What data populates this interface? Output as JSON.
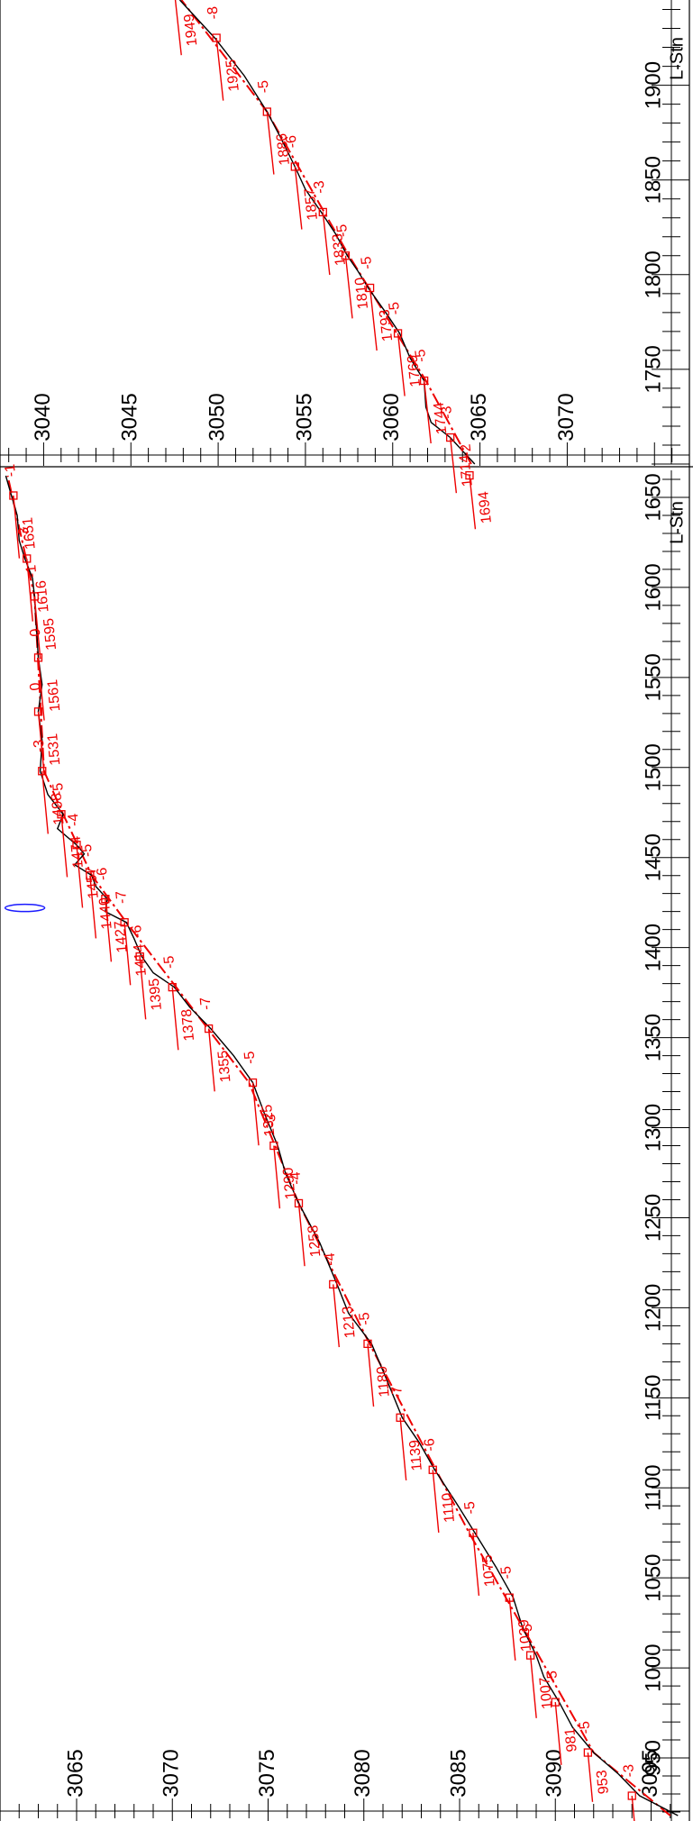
{
  "axes": {
    "l_stn_label": "L-Stn",
    "panel_a": {
      "stn_ticks": [
        "950",
        "1000",
        "1050",
        "1100",
        "1150",
        "1200",
        "1250",
        "1300",
        "1350",
        "1400",
        "1450",
        "1500",
        "1550",
        "1600",
        "1650"
      ],
      "elev_ticks": [
        "3095",
        "3090",
        "3085",
        "3080",
        "3075",
        "3070",
        "3065"
      ]
    },
    "panel_b": {
      "stn_ticks": [
        "1750",
        "1800",
        "1850",
        "1900"
      ],
      "elev_ticks": [
        "3070",
        "3065",
        "3060",
        "3055",
        "3050",
        "3045",
        "3040"
      ]
    }
  },
  "colors": {
    "annotation": "#e00000",
    "ground_profile": "#000000",
    "blunder_marker": "#1a1aff"
  },
  "chart_data": {
    "type": "line",
    "xlabel": "L-Stn",
    "ylabel": "",
    "panels": [
      {
        "xlim": [
          915,
          1665
        ],
        "ylim": [
          3061,
          3097
        ],
        "x_ticks": [
          950,
          1000,
          1050,
          1100,
          1150,
          1200,
          1250,
          1300,
          1350,
          1400,
          1450,
          1500,
          1550,
          1600,
          1650
        ],
        "y_ticks": [
          3095,
          3090,
          3085,
          3080,
          3075,
          3070,
          3065
        ],
        "stations": [
          {
            "stn": "929",
            "diff": "-3",
            "x": 929,
            "y": 3094.0,
            "len": 36,
            "show_label": false
          },
          {
            "stn": "953",
            "diff": "-5",
            "x": 953,
            "y": 3091.7,
            "len": 55
          },
          {
            "stn": "981",
            "diff": "-5",
            "x": 981,
            "y": 3090.0,
            "len": 70
          },
          {
            "stn": "1007",
            "diff": "-5",
            "x": 1007,
            "y": 3088.7,
            "len": 70
          },
          {
            "stn": "1039",
            "diff": "-5",
            "x": 1039,
            "y": 3087.6,
            "len": 70
          },
          {
            "stn": "1075",
            "diff": "-5",
            "x": 1075,
            "y": 3085.7,
            "len": 70
          },
          {
            "stn": "1110",
            "diff": "-6",
            "x": 1110,
            "y": 3083.6,
            "len": 70
          },
          {
            "stn": "1139",
            "diff": "-7",
            "x": 1139,
            "y": 3081.9,
            "len": 70
          },
          {
            "stn": "1180",
            "diff": "-5",
            "x": 1180,
            "y": 3080.2,
            "len": 70
          },
          {
            "stn": "1213",
            "diff": "-4",
            "x": 1213,
            "y": 3078.4,
            "len": 70
          },
          {
            "stn": "1258",
            "diff": "-4",
            "x": 1258,
            "y": 3076.6,
            "len": 70
          },
          {
            "stn": "1290",
            "diff": "-3",
            "x": 1290,
            "y": 3075.3,
            "len": 70
          },
          {
            "stn": "1325",
            "diff": "-5",
            "x": 1325,
            "y": 3074.2,
            "len": 70
          },
          {
            "stn": "1355",
            "diff": "-7",
            "x": 1355,
            "y": 3071.9,
            "len": 70
          },
          {
            "stn": "1378",
            "diff": "-5",
            "x": 1378,
            "y": 3070.0,
            "len": 70
          },
          {
            "stn": "1395",
            "diff": "-6",
            "x": 1395,
            "y": 3068.3,
            "len": 70
          },
          {
            "stn": "1414",
            "diff": "-7",
            "x": 1414,
            "y": 3067.5,
            "len": 70
          },
          {
            "stn": "1427",
            "diff": "-6",
            "x": 1427,
            "y": 3066.5,
            "len": 70
          },
          {
            "stn": "1440",
            "diff": "-5",
            "x": 1440,
            "y": 3065.7,
            "len": 70
          },
          {
            "stn": "1457",
            "diff": "-4",
            "x": 1457,
            "y": 3065.0,
            "len": 70
          },
          {
            "stn": "1474",
            "diff": "-5",
            "x": 1474,
            "y": 3064.2,
            "len": 70
          },
          {
            "stn": "1498",
            "diff": "-3",
            "x": 1498,
            "y": 3063.2,
            "len": 70
          },
          {
            "stn": "1531",
            "diff": "0",
            "x": 1531,
            "y": 3063.0,
            "len": 70
          },
          {
            "stn": "1561",
            "diff": "0",
            "x": 1561,
            "y": 3063.0,
            "len": 70
          },
          {
            "stn": "1595",
            "diff": "-1",
            "x": 1595,
            "y": 3062.8,
            "len": 70
          },
          {
            "stn": "1616",
            "diff": "-3",
            "x": 1616,
            "y": 3062.4,
            "len": 70
          },
          {
            "stn": "1651",
            "diff": "-1",
            "x": 1651,
            "y": 3061.7,
            "len": 70
          }
        ],
        "ground_profile": [
          [
            918,
            3096.4
          ],
          [
            929,
            3094.4
          ],
          [
            941,
            3093.3
          ],
          [
            953,
            3092.0
          ],
          [
            967,
            3090.9
          ],
          [
            981,
            3090.2
          ],
          [
            995,
            3089.4
          ],
          [
            1007,
            3089.0
          ],
          [
            1022,
            3088.3
          ],
          [
            1039,
            3087.8
          ],
          [
            1056,
            3086.9
          ],
          [
            1075,
            3085.8
          ],
          [
            1092,
            3084.8
          ],
          [
            1110,
            3083.7
          ],
          [
            1125,
            3082.9
          ],
          [
            1139,
            3082.0
          ],
          [
            1160,
            3081.2
          ],
          [
            1180,
            3080.4
          ],
          [
            1197,
            3079.2
          ],
          [
            1213,
            3078.6
          ],
          [
            1236,
            3077.7
          ],
          [
            1258,
            3076.6
          ],
          [
            1275,
            3075.9
          ],
          [
            1290,
            3075.5
          ],
          [
            1308,
            3074.8
          ],
          [
            1325,
            3074.2
          ],
          [
            1340,
            3073.2
          ],
          [
            1355,
            3072.0
          ],
          [
            1367,
            3070.9
          ],
          [
            1378,
            3070.1
          ],
          [
            1386,
            3069.0
          ],
          [
            1395,
            3068.4
          ],
          [
            1405,
            3068.0
          ],
          [
            1414,
            3067.6
          ],
          [
            1420,
            3066.5
          ],
          [
            1427,
            3066.6
          ],
          [
            1434,
            3066.0
          ],
          [
            1440,
            3065.8
          ],
          [
            1446,
            3064.9
          ],
          [
            1452,
            3065.4
          ],
          [
            1457,
            3065.0
          ],
          [
            1466,
            3064.0
          ],
          [
            1474,
            3064.3
          ],
          [
            1485,
            3063.5
          ],
          [
            1498,
            3063.1
          ],
          [
            1515,
            3063.2
          ],
          [
            1531,
            3063.0
          ],
          [
            1546,
            3063.2
          ],
          [
            1561,
            3063.0
          ],
          [
            1578,
            3062.9
          ],
          [
            1595,
            3062.8
          ],
          [
            1605,
            3062.7
          ],
          [
            1616,
            3062.3
          ],
          [
            1626,
            3062.0
          ],
          [
            1640,
            3061.9
          ],
          [
            1651,
            3061.6
          ],
          [
            1662,
            3061.3
          ]
        ],
        "design_profile": [
          [
            918,
            3096.0
          ],
          [
            953,
            3092.0
          ],
          [
            1075,
            3085.5
          ],
          [
            1180,
            3080.3
          ],
          [
            1258,
            3076.6
          ],
          [
            1325,
            3074.0
          ],
          [
            1378,
            3070.2
          ],
          [
            1414,
            3067.6
          ],
          [
            1440,
            3065.8
          ],
          [
            1474,
            3064.3
          ],
          [
            1498,
            3063.3
          ],
          [
            1595,
            3062.8
          ],
          [
            1662,
            3061.4
          ]
        ],
        "blunder_marker": {
          "x": 1422,
          "y": 3062.3
        }
      },
      {
        "xlim": [
          1700,
          1945
        ],
        "ylim": [
          3037.5,
          3077
        ],
        "x_ticks": [
          1750,
          1800,
          1850,
          1900
        ],
        "y_ticks": [
          3070,
          3065,
          3060,
          3055,
          3050,
          3045,
          3040
        ],
        "stations": [
          {
            "stn": "1694",
            "diff": "-2",
            "x": 1694,
            "y": 3064.4,
            "len": 60
          },
          {
            "stn": "1714",
            "diff": "-3",
            "x": 1714,
            "y": 3063.3,
            "len": 62
          },
          {
            "stn": "1744",
            "diff": "-5",
            "x": 1744,
            "y": 3061.8,
            "len": 70
          },
          {
            "stn": "1769",
            "diff": "-5",
            "x": 1769,
            "y": 3060.3,
            "len": 70
          },
          {
            "stn": "1793",
            "diff": "-5",
            "x": 1793,
            "y": 3058.7,
            "len": 70
          },
          {
            "stn": "1810",
            "diff": "-5",
            "x": 1810,
            "y": 3057.3,
            "len": 70
          },
          {
            "stn": "1833",
            "diff": "-3",
            "x": 1833,
            "y": 3056.0,
            "len": 70
          },
          {
            "stn": "1857",
            "diff": "-6",
            "x": 1857,
            "y": 3054.4,
            "len": 70
          },
          {
            "stn": "1886",
            "diff": "-5",
            "x": 1886,
            "y": 3052.8,
            "len": 70
          },
          {
            "stn": "1925",
            "diff": "-8",
            "x": 1925,
            "y": 3049.9,
            "len": 70
          },
          {
            "stn": "1949",
            "diff": "",
            "x": 1949,
            "y": 3047.5,
            "len": 70
          }
        ],
        "ground_profile": [
          [
            1700,
            3064.7
          ],
          [
            1714,
            3063.3
          ],
          [
            1722,
            3062.2
          ],
          [
            1730,
            3061.9
          ],
          [
            1744,
            3061.8
          ],
          [
            1756,
            3061.0
          ],
          [
            1769,
            3060.4
          ],
          [
            1780,
            3059.6
          ],
          [
            1793,
            3058.6
          ],
          [
            1802,
            3058.0
          ],
          [
            1810,
            3057.4
          ],
          [
            1822,
            3056.7
          ],
          [
            1833,
            3055.9
          ],
          [
            1845,
            3055.0
          ],
          [
            1857,
            3054.4
          ],
          [
            1872,
            3053.6
          ],
          [
            1886,
            3052.8
          ],
          [
            1905,
            3051.5
          ],
          [
            1925,
            3049.8
          ],
          [
            1945,
            3047.8
          ]
        ],
        "design_profile": [
          [
            1700,
            3064.5
          ],
          [
            1744,
            3061.9
          ],
          [
            1810,
            3057.5
          ],
          [
            1886,
            3052.8
          ],
          [
            1945,
            3047.9
          ]
        ]
      }
    ]
  }
}
